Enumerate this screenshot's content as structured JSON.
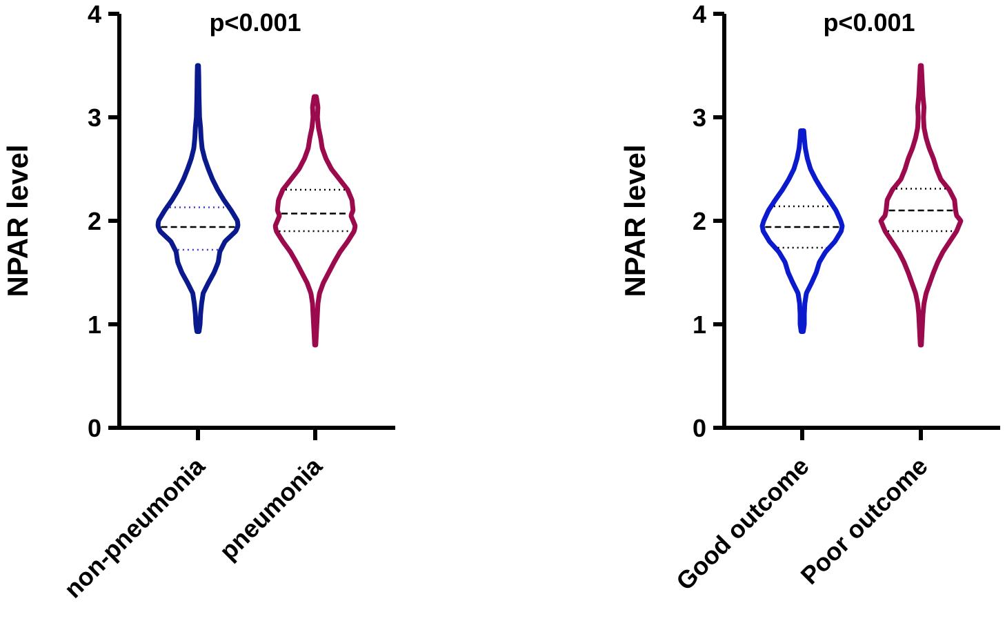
{
  "chart_data": [
    {
      "type": "violin",
      "title": "",
      "annotation": "p<0.001",
      "xlabel": "",
      "ylabel": "NPAR level",
      "ylim": [
        0,
        4
      ],
      "yticks": [
        0,
        1,
        2,
        3,
        4
      ],
      "yticklabels": [
        "0",
        "1",
        "2",
        "3",
        "4"
      ],
      "categories": [
        "non-pneumonia",
        "pneumonia"
      ],
      "groups": [
        {
          "name": "non-pneumonia",
          "color": "#0a1a8c",
          "quartile_color": "#3a3ad0",
          "min": 0.93,
          "max": 3.5,
          "q1": 1.72,
          "median": 1.94,
          "q3": 2.13,
          "density": [
            [
              0.93,
              0.02
            ],
            [
              1.0,
              0.04
            ],
            [
              1.1,
              0.05
            ],
            [
              1.2,
              0.07
            ],
            [
              1.3,
              0.1
            ],
            [
              1.4,
              0.2
            ],
            [
              1.5,
              0.31
            ],
            [
              1.6,
              0.39
            ],
            [
              1.7,
              0.42
            ],
            [
              1.8,
              0.52
            ],
            [
              1.9,
              0.73
            ],
            [
              1.95,
              0.77
            ],
            [
              2.0,
              0.76
            ],
            [
              2.1,
              0.64
            ],
            [
              2.2,
              0.5
            ],
            [
              2.3,
              0.38
            ],
            [
              2.4,
              0.28
            ],
            [
              2.5,
              0.2
            ],
            [
              2.6,
              0.13
            ],
            [
              2.7,
              0.08
            ],
            [
              2.8,
              0.06
            ],
            [
              2.9,
              0.05
            ],
            [
              3.0,
              0.03
            ],
            [
              3.2,
              0.02
            ],
            [
              3.4,
              0.015
            ],
            [
              3.5,
              0.01
            ]
          ]
        },
        {
          "name": "pneumonia",
          "color": "#9b0a4d",
          "quartile_color": "#000000",
          "min": 0.8,
          "max": 3.2,
          "q1": 1.9,
          "median": 2.07,
          "q3": 2.3,
          "density": [
            [
              0.8,
              0.01
            ],
            [
              0.9,
              0.02
            ],
            [
              1.0,
              0.03
            ],
            [
              1.1,
              0.04
            ],
            [
              1.2,
              0.05
            ],
            [
              1.3,
              0.08
            ],
            [
              1.4,
              0.15
            ],
            [
              1.5,
              0.25
            ],
            [
              1.6,
              0.35
            ],
            [
              1.7,
              0.46
            ],
            [
              1.8,
              0.6
            ],
            [
              1.9,
              0.72
            ],
            [
              1.95,
              0.74
            ],
            [
              2.0,
              0.7
            ],
            [
              2.05,
              0.66
            ],
            [
              2.1,
              0.7
            ],
            [
              2.2,
              0.68
            ],
            [
              2.3,
              0.6
            ],
            [
              2.4,
              0.45
            ],
            [
              2.5,
              0.3
            ],
            [
              2.6,
              0.2
            ],
            [
              2.7,
              0.13
            ],
            [
              2.8,
              0.1
            ],
            [
              2.9,
              0.06
            ],
            [
              3.0,
              0.04
            ],
            [
              3.1,
              0.05
            ],
            [
              3.2,
              0.02
            ]
          ]
        }
      ]
    },
    {
      "type": "violin",
      "title": "",
      "annotation": "p<0.001",
      "xlabel": "",
      "ylabel": "NPAR level",
      "ylim": [
        0,
        4
      ],
      "yticks": [
        0,
        1,
        2,
        3,
        4
      ],
      "yticklabels": [
        "0",
        "1",
        "2",
        "3",
        "4"
      ],
      "categories": [
        "Good outcome",
        "Poor outcome"
      ],
      "groups": [
        {
          "name": "Good outcome",
          "color": "#0a1acc",
          "quartile_color": "#000000",
          "min": 0.93,
          "max": 2.87,
          "q1": 1.74,
          "median": 1.94,
          "q3": 2.14,
          "density": [
            [
              0.93,
              0.02
            ],
            [
              1.0,
              0.04
            ],
            [
              1.1,
              0.04
            ],
            [
              1.2,
              0.05
            ],
            [
              1.3,
              0.08
            ],
            [
              1.4,
              0.18
            ],
            [
              1.5,
              0.27
            ],
            [
              1.6,
              0.33
            ],
            [
              1.7,
              0.45
            ],
            [
              1.8,
              0.63
            ],
            [
              1.9,
              0.75
            ],
            [
              1.95,
              0.77
            ],
            [
              2.0,
              0.74
            ],
            [
              2.1,
              0.65
            ],
            [
              2.2,
              0.52
            ],
            [
              2.3,
              0.38
            ],
            [
              2.4,
              0.26
            ],
            [
              2.5,
              0.16
            ],
            [
              2.6,
              0.1
            ],
            [
              2.7,
              0.06
            ],
            [
              2.8,
              0.04
            ],
            [
              2.87,
              0.03
            ]
          ]
        },
        {
          "name": "Poor outcome",
          "color": "#9b0a4d",
          "quartile_color": "#000000",
          "min": 0.8,
          "max": 3.5,
          "q1": 1.9,
          "median": 2.1,
          "q3": 2.31,
          "density": [
            [
              0.8,
              0.01
            ],
            [
              0.9,
              0.02
            ],
            [
              1.0,
              0.03
            ],
            [
              1.1,
              0.04
            ],
            [
              1.2,
              0.06
            ],
            [
              1.3,
              0.1
            ],
            [
              1.4,
              0.17
            ],
            [
              1.5,
              0.24
            ],
            [
              1.6,
              0.32
            ],
            [
              1.7,
              0.42
            ],
            [
              1.8,
              0.55
            ],
            [
              1.9,
              0.68
            ],
            [
              2.0,
              0.76
            ],
            [
              2.05,
              0.68
            ],
            [
              2.1,
              0.66
            ],
            [
              2.2,
              0.64
            ],
            [
              2.3,
              0.54
            ],
            [
              2.4,
              0.38
            ],
            [
              2.5,
              0.3
            ],
            [
              2.6,
              0.24
            ],
            [
              2.7,
              0.16
            ],
            [
              2.8,
              0.1
            ],
            [
              2.9,
              0.06
            ],
            [
              3.0,
              0.05
            ],
            [
              3.1,
              0.06
            ],
            [
              3.2,
              0.04
            ],
            [
              3.3,
              0.03
            ],
            [
              3.4,
              0.02
            ],
            [
              3.5,
              0.01
            ]
          ]
        }
      ]
    }
  ]
}
